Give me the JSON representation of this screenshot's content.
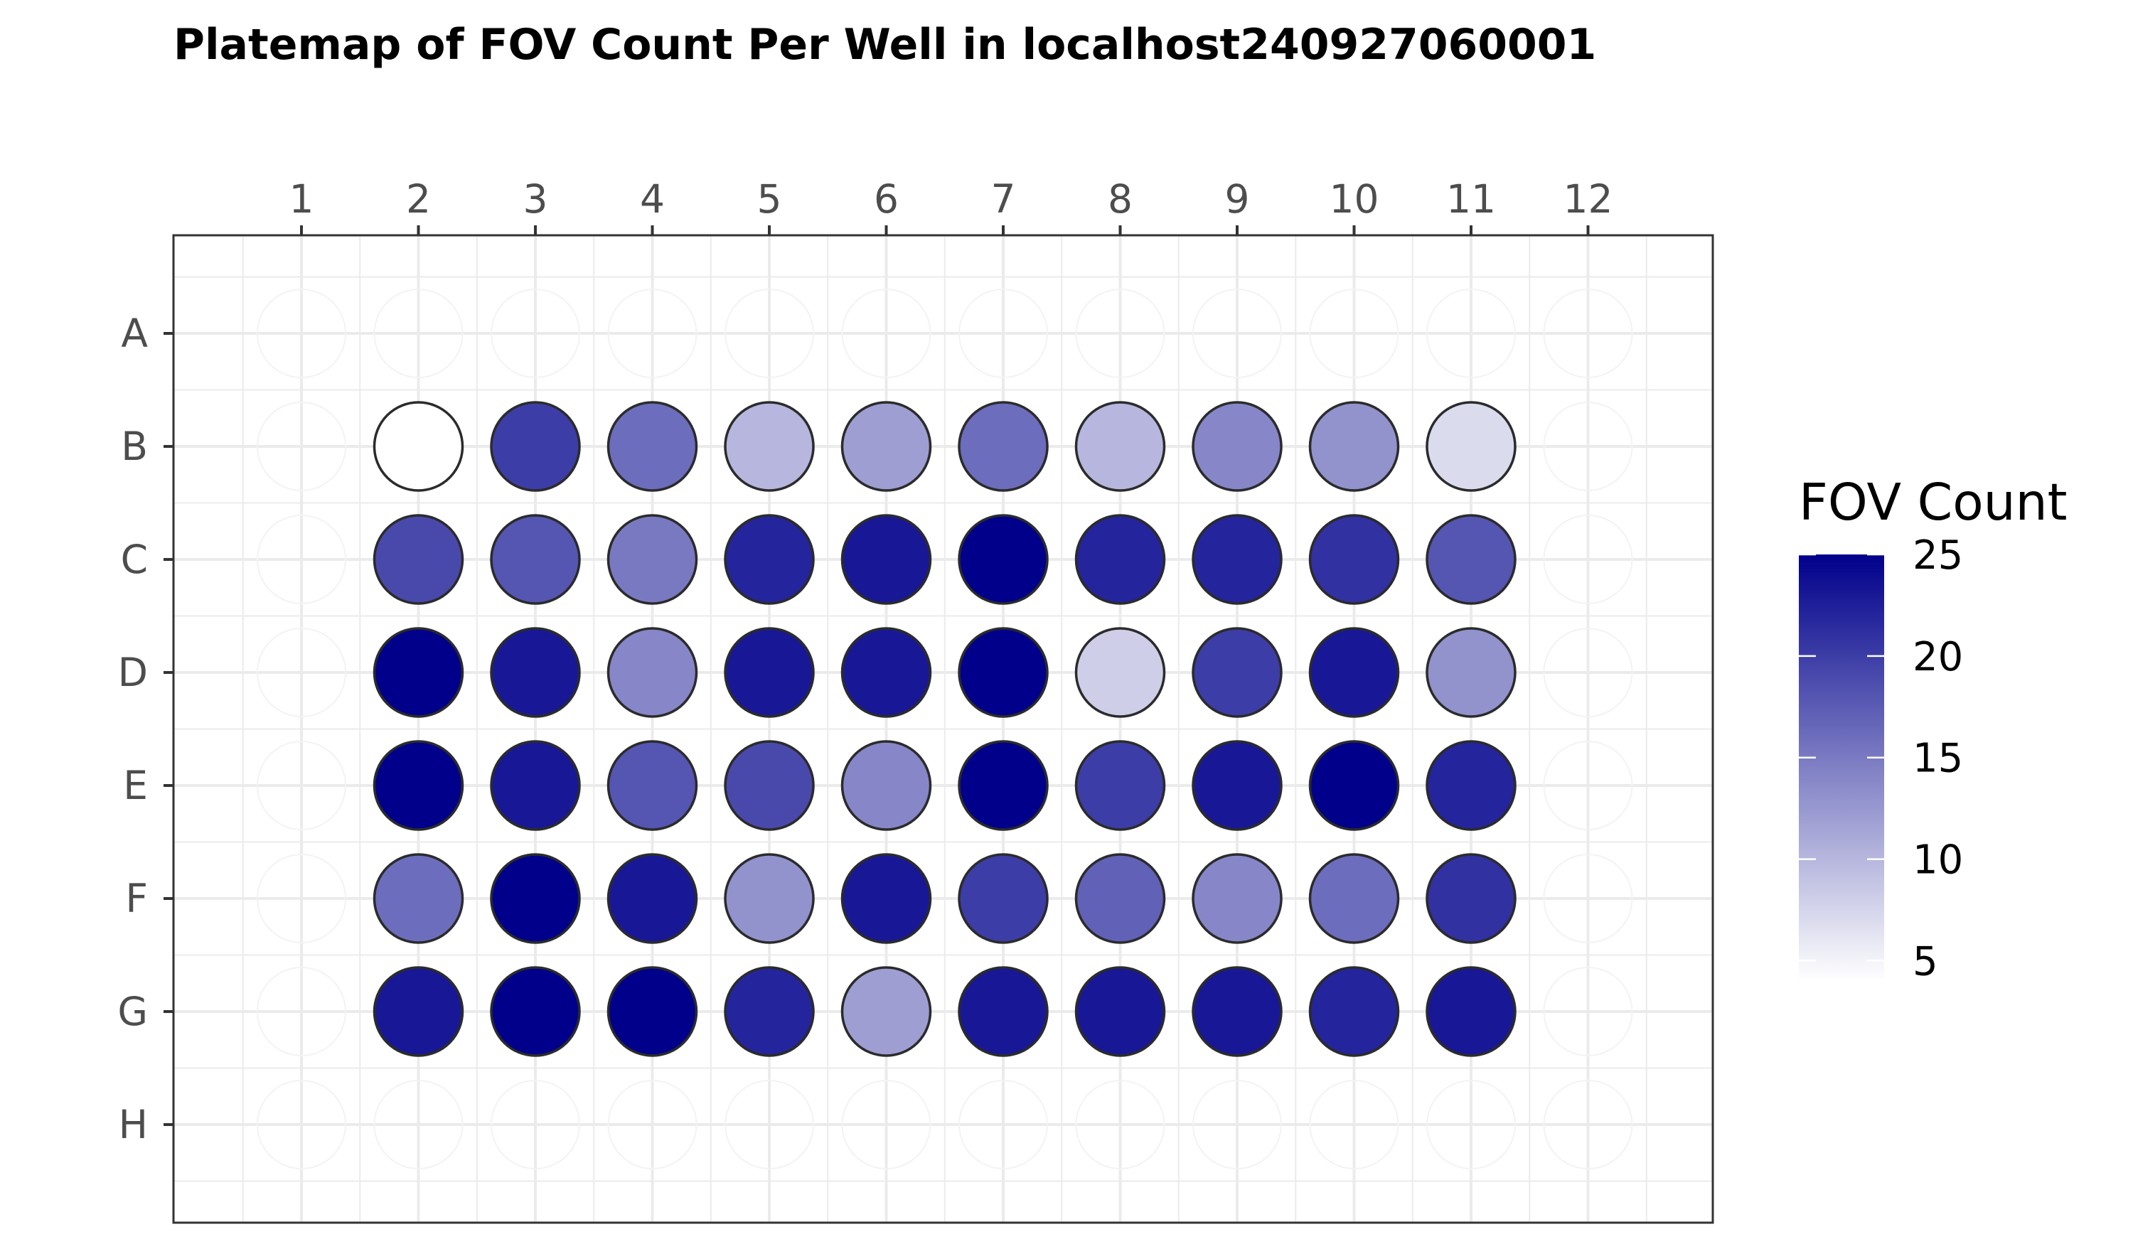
{
  "chart_data": {
    "type": "heatmap",
    "title": "Platemap of FOV Count Per Well in localhost240927060001",
    "xlabel": "",
    "ylabel": "",
    "columns": [
      "1",
      "2",
      "3",
      "4",
      "5",
      "6",
      "7",
      "8",
      "9",
      "10",
      "11",
      "12"
    ],
    "rows": [
      "A",
      "B",
      "C",
      "D",
      "E",
      "F",
      "G",
      "H"
    ],
    "x_axis_position": "top",
    "grid": true,
    "legend": {
      "title": "FOV Count",
      "placement": "right",
      "min": 4,
      "max": 25,
      "breaks": [
        5,
        10,
        15,
        20,
        25
      ],
      "color_low": "#ffffff",
      "color_high": "#00008b"
    },
    "wells": [
      {
        "row": "B",
        "col": "2",
        "value": 4
      },
      {
        "row": "B",
        "col": "3",
        "value": 20
      },
      {
        "row": "B",
        "col": "4",
        "value": 16
      },
      {
        "row": "B",
        "col": "5",
        "value": 10
      },
      {
        "row": "B",
        "col": "6",
        "value": 12
      },
      {
        "row": "B",
        "col": "7",
        "value": 16
      },
      {
        "row": "B",
        "col": "8",
        "value": 10
      },
      {
        "row": "B",
        "col": "9",
        "value": 14
      },
      {
        "row": "B",
        "col": "10",
        "value": 13
      },
      {
        "row": "B",
        "col": "11",
        "value": 7
      },
      {
        "row": "C",
        "col": "2",
        "value": 19
      },
      {
        "row": "C",
        "col": "3",
        "value": 18
      },
      {
        "row": "C",
        "col": "4",
        "value": 15
      },
      {
        "row": "C",
        "col": "5",
        "value": 22
      },
      {
        "row": "C",
        "col": "6",
        "value": 23
      },
      {
        "row": "C",
        "col": "7",
        "value": 25
      },
      {
        "row": "C",
        "col": "8",
        "value": 22
      },
      {
        "row": "C",
        "col": "9",
        "value": 22
      },
      {
        "row": "C",
        "col": "10",
        "value": 21
      },
      {
        "row": "C",
        "col": "11",
        "value": 18
      },
      {
        "row": "D",
        "col": "2",
        "value": 25
      },
      {
        "row": "D",
        "col": "3",
        "value": 23
      },
      {
        "row": "D",
        "col": "4",
        "value": 14
      },
      {
        "row": "D",
        "col": "5",
        "value": 23
      },
      {
        "row": "D",
        "col": "6",
        "value": 23
      },
      {
        "row": "D",
        "col": "7",
        "value": 25
      },
      {
        "row": "D",
        "col": "8",
        "value": 8
      },
      {
        "row": "D",
        "col": "9",
        "value": 20
      },
      {
        "row": "D",
        "col": "10",
        "value": 23
      },
      {
        "row": "D",
        "col": "11",
        "value": 13
      },
      {
        "row": "E",
        "col": "2",
        "value": 25
      },
      {
        "row": "E",
        "col": "3",
        "value": 23
      },
      {
        "row": "E",
        "col": "4",
        "value": 18
      },
      {
        "row": "E",
        "col": "5",
        "value": 19
      },
      {
        "row": "E",
        "col": "6",
        "value": 14
      },
      {
        "row": "E",
        "col": "7",
        "value": 25
      },
      {
        "row": "E",
        "col": "8",
        "value": 20
      },
      {
        "row": "E",
        "col": "9",
        "value": 23
      },
      {
        "row": "E",
        "col": "10",
        "value": 25
      },
      {
        "row": "E",
        "col": "11",
        "value": 22
      },
      {
        "row": "F",
        "col": "2",
        "value": 16
      },
      {
        "row": "F",
        "col": "3",
        "value": 25
      },
      {
        "row": "F",
        "col": "4",
        "value": 23
      },
      {
        "row": "F",
        "col": "5",
        "value": 13
      },
      {
        "row": "F",
        "col": "6",
        "value": 23
      },
      {
        "row": "F",
        "col": "7",
        "value": 20
      },
      {
        "row": "F",
        "col": "8",
        "value": 17
      },
      {
        "row": "F",
        "col": "9",
        "value": 14
      },
      {
        "row": "F",
        "col": "10",
        "value": 16
      },
      {
        "row": "F",
        "col": "11",
        "value": 21
      },
      {
        "row": "G",
        "col": "2",
        "value": 23
      },
      {
        "row": "G",
        "col": "3",
        "value": 25
      },
      {
        "row": "G",
        "col": "4",
        "value": 25
      },
      {
        "row": "G",
        "col": "5",
        "value": 22
      },
      {
        "row": "G",
        "col": "6",
        "value": 12
      },
      {
        "row": "G",
        "col": "7",
        "value": 23
      },
      {
        "row": "G",
        "col": "8",
        "value": 23
      },
      {
        "row": "G",
        "col": "9",
        "value": 23
      },
      {
        "row": "G",
        "col": "10",
        "value": 22
      },
      {
        "row": "G",
        "col": "11",
        "value": 23
      }
    ]
  }
}
